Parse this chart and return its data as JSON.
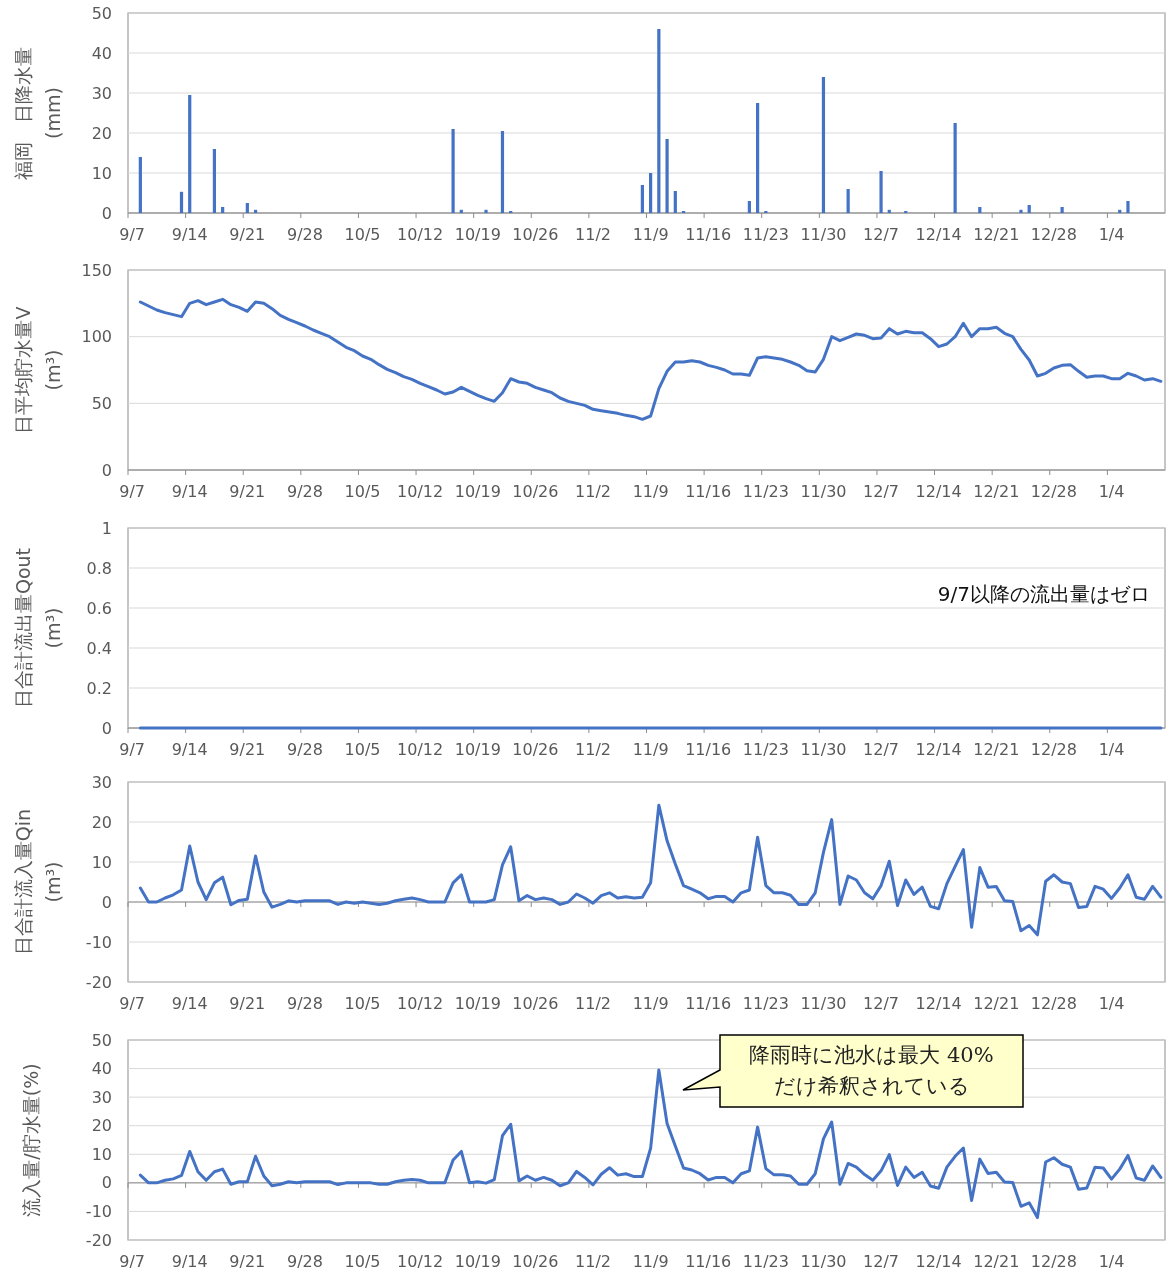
{
  "chart_data": [
    {
      "type": "bar",
      "ylabel": "福岡　日降水量\n(mm)",
      "color": "#4472c4",
      "ylim": [
        0,
        50
      ],
      "yticks": [
        0,
        10,
        20,
        30,
        40,
        50
      ],
      "grid": "y",
      "categories": [
        "9/7",
        null,
        null,
        null,
        null,
        null,
        null,
        "9/14",
        null,
        null,
        null,
        null,
        null,
        null,
        "9/21",
        null,
        null,
        null,
        null,
        null,
        null,
        "9/28",
        null,
        null,
        null,
        null,
        null,
        null,
        "10/5",
        null,
        null,
        null,
        null,
        null,
        null,
        "10/12",
        null,
        null,
        null,
        null,
        null,
        null,
        "10/19",
        null,
        null,
        null,
        null,
        null,
        null,
        "10/26",
        null,
        null,
        null,
        null,
        null,
        null,
        "11/2",
        null,
        null,
        null,
        null,
        null,
        null,
        "11/9",
        null,
        null,
        null,
        null,
        null,
        null,
        "11/16",
        null,
        null,
        null,
        null,
        null,
        null,
        "11/23",
        null,
        null,
        null,
        null,
        null,
        null,
        "11/30",
        null,
        null,
        null,
        null,
        null,
        null,
        "12/7",
        null,
        null,
        null,
        null,
        null,
        null,
        "12/14",
        null,
        null,
        null,
        null,
        null,
        null,
        "12/21",
        null,
        null,
        null,
        null,
        null,
        null,
        "12/28",
        null,
        null,
        null,
        null,
        null,
        null,
        "1/4",
        null,
        null,
        null,
        null,
        null,
        null
      ],
      "values": [
        null,
        14,
        0,
        0,
        0,
        0,
        5.3,
        29.5,
        0,
        0,
        16,
        1.5,
        0,
        0,
        2.5,
        0.8,
        0,
        0,
        0,
        0,
        0,
        0,
        0,
        0,
        0,
        0,
        0,
        0,
        0,
        0,
        0,
        0,
        0,
        0,
        0,
        0,
        0,
        0,
        0,
        21,
        0.8,
        0,
        0,
        0.8,
        0,
        20.5,
        0.5,
        0,
        0,
        0,
        0,
        0,
        0,
        0,
        0,
        0,
        0,
        0,
        0,
        0,
        0,
        0,
        7,
        10,
        46,
        18.5,
        5.5,
        0.5,
        0,
        0,
        0,
        0,
        0,
        0,
        0,
        3,
        27.5,
        0.5,
        0,
        0,
        0,
        0,
        0,
        0,
        34,
        0,
        0,
        6,
        0,
        0,
        0,
        10.5,
        0.8,
        0,
        0.5,
        0,
        0,
        0,
        0,
        0,
        22.5,
        0,
        0,
        1.5,
        0,
        0,
        0,
        0,
        0.8,
        2,
        0,
        0,
        0,
        1.5,
        0,
        0,
        0,
        0,
        0,
        0,
        0.8,
        3,
        0,
        0,
        0,
        0
      ]
    },
    {
      "type": "line",
      "ylabel": "日平均貯水量V\n(m³)",
      "color": "#4472c4",
      "ylim": [
        0,
        150
      ],
      "yticks": [
        0,
        50,
        100,
        150
      ],
      "grid": "y",
      "marker": "none",
      "categories": [
        "9/7",
        null,
        null,
        null,
        null,
        null,
        null,
        "9/14",
        null,
        null,
        null,
        null,
        null,
        null,
        "9/21",
        null,
        null,
        null,
        null,
        null,
        null,
        "9/28",
        null,
        null,
        null,
        null,
        null,
        null,
        "10/5",
        null,
        null,
        null,
        null,
        null,
        null,
        "10/12",
        null,
        null,
        null,
        null,
        null,
        null,
        "10/19",
        null,
        null,
        null,
        null,
        null,
        null,
        "10/26",
        null,
        null,
        null,
        null,
        null,
        null,
        "11/2",
        null,
        null,
        null,
        null,
        null,
        null,
        "11/9",
        null,
        null,
        null,
        null,
        null,
        null,
        "11/16",
        null,
        null,
        null,
        null,
        null,
        null,
        "11/23",
        null,
        null,
        null,
        null,
        null,
        null,
        "11/30",
        null,
        null,
        null,
        null,
        null,
        null,
        "12/7",
        null,
        null,
        null,
        null,
        null,
        null,
        "12/14",
        null,
        null,
        null,
        null,
        null,
        null,
        "12/21",
        null,
        null,
        null,
        null,
        null,
        null,
        "12/28",
        null,
        null,
        null,
        null,
        null,
        null,
        "1/4",
        null,
        null,
        null,
        null,
        null,
        null
      ],
      "values": [
        null,
        126,
        123,
        120,
        118,
        116.5,
        115,
        125,
        127,
        124,
        126,
        128,
        124,
        122,
        119,
        126,
        125,
        121,
        116,
        113,
        110.5,
        108,
        105,
        102.5,
        100,
        96,
        92,
        89.5,
        85.5,
        83,
        79,
        75.5,
        73,
        70,
        68,
        65,
        62.5,
        60,
        57,
        58.5,
        62,
        59,
        56,
        53.5,
        51.5,
        58,
        68.5,
        66,
        65,
        62,
        60,
        58,
        54,
        51.5,
        50,
        48.5,
        45.5,
        44.5,
        43.5,
        42.5,
        41,
        40,
        38,
        40.5,
        61,
        74,
        81,
        81,
        82,
        81,
        78.5,
        77,
        75,
        72,
        72,
        71,
        84,
        85,
        84,
        83,
        81,
        78.5,
        74.5,
        73.5,
        83,
        100,
        97,
        99.5,
        102,
        101,
        98.5,
        99,
        106,
        102,
        104,
        103,
        103,
        98.5,
        92.5,
        94.5,
        100,
        110,
        100,
        106,
        106,
        107,
        102.5,
        100,
        90.5,
        82.5,
        70.5,
        72.5,
        76.5,
        78.5,
        79,
        74,
        69.5,
        70.5,
        70.5,
        68.5,
        68.5,
        72.5,
        70.5,
        67.5,
        68.5,
        66.5
      ]
    },
    {
      "type": "line",
      "ylabel": "日合計流出量Qout\n(m³)",
      "color": "#4472c4",
      "ylim": [
        0,
        1
      ],
      "yticks": [
        0,
        0.2,
        0.4,
        0.6,
        0.8,
        1
      ],
      "grid": "y",
      "marker": "none",
      "annotations": [
        "9/7以降の流出量はゼロ"
      ],
      "categories": [
        "9/7",
        null,
        null,
        null,
        null,
        null,
        null,
        "9/14",
        null,
        null,
        null,
        null,
        null,
        null,
        "9/21",
        null,
        null,
        null,
        null,
        null,
        null,
        "9/28",
        null,
        null,
        null,
        null,
        null,
        null,
        "10/5",
        null,
        null,
        null,
        null,
        null,
        null,
        "10/12",
        null,
        null,
        null,
        null,
        null,
        null,
        "10/19",
        null,
        null,
        null,
        null,
        null,
        null,
        "10/26",
        null,
        null,
        null,
        null,
        null,
        null,
        "11/2",
        null,
        null,
        null,
        null,
        null,
        null,
        "11/9",
        null,
        null,
        null,
        null,
        null,
        null,
        "11/16",
        null,
        null,
        null,
        null,
        null,
        null,
        "11/23",
        null,
        null,
        null,
        null,
        null,
        null,
        "11/30",
        null,
        null,
        null,
        null,
        null,
        null,
        "12/7",
        null,
        null,
        null,
        null,
        null,
        null,
        "12/14",
        null,
        null,
        null,
        null,
        null,
        null,
        "12/21",
        null,
        null,
        null,
        null,
        null,
        null,
        "12/28",
        null,
        null,
        null,
        null,
        null,
        null,
        "1/4",
        null,
        null,
        null,
        null,
        null,
        null
      ],
      "values": [
        null,
        0,
        0,
        0,
        0,
        0,
        0,
        0,
        0,
        0,
        0,
        0,
        0,
        0,
        0,
        0,
        0,
        0,
        0,
        0,
        0,
        0,
        0,
        0,
        0,
        0,
        0,
        0,
        0,
        0,
        0,
        0,
        0,
        0,
        0,
        0,
        0,
        0,
        0,
        0,
        0,
        0,
        0,
        0,
        0,
        0,
        0,
        0,
        0,
        0,
        0,
        0,
        0,
        0,
        0,
        0,
        0,
        0,
        0,
        0,
        0,
        0,
        0,
        0,
        0,
        0,
        0,
        0,
        0,
        0,
        0,
        0,
        0,
        0,
        0,
        0,
        0,
        0,
        0,
        0,
        0,
        0,
        0,
        0,
        0,
        0,
        0,
        0,
        0,
        0,
        0,
        0,
        0,
        0,
        0,
        0,
        0,
        0,
        0,
        0,
        0,
        0,
        0,
        0,
        0,
        0,
        0,
        0,
        0,
        0,
        0,
        0,
        0,
        0,
        0,
        0,
        0,
        0,
        0,
        0,
        0,
        0,
        0,
        0,
        0,
        0
      ]
    },
    {
      "type": "line",
      "ylabel": "日合計流入量Qin\n(m³)",
      "color": "#4472c4",
      "ylim": [
        -20,
        30
      ],
      "yticks": [
        -20,
        -10,
        0,
        10,
        20,
        30
      ],
      "grid": "y",
      "marker": "none",
      "categories": [
        "9/7",
        null,
        null,
        null,
        null,
        null,
        null,
        "9/14",
        null,
        null,
        null,
        null,
        null,
        null,
        "9/21",
        null,
        null,
        null,
        null,
        null,
        null,
        "9/28",
        null,
        null,
        null,
        null,
        null,
        null,
        "10/5",
        null,
        null,
        null,
        null,
        null,
        null,
        "10/12",
        null,
        null,
        null,
        null,
        null,
        null,
        "10/19",
        null,
        null,
        null,
        null,
        null,
        null,
        "10/26",
        null,
        null,
        null,
        null,
        null,
        null,
        "11/2",
        null,
        null,
        null,
        null,
        null,
        null,
        "11/9",
        null,
        null,
        null,
        null,
        null,
        null,
        "11/16",
        null,
        null,
        null,
        null,
        null,
        null,
        "11/23",
        null,
        null,
        null,
        null,
        null,
        null,
        "11/30",
        null,
        null,
        null,
        null,
        null,
        null,
        "12/7",
        null,
        null,
        null,
        null,
        null,
        null,
        "12/14",
        null,
        null,
        null,
        null,
        null,
        null,
        "12/21",
        null,
        null,
        null,
        null,
        null,
        null,
        "12/28",
        null,
        null,
        null,
        null,
        null,
        null,
        "1/4",
        null,
        null,
        null,
        null,
        null,
        null
      ],
      "values": [
        null,
        3.5,
        0,
        0,
        1,
        1.8,
        3,
        14,
        5,
        0.6,
        4.8,
        6.2,
        -0.7,
        0.4,
        0.7,
        11.5,
        2.5,
        -1.3,
        -0.6,
        0.3,
        0,
        0.3,
        0.3,
        0.3,
        0.3,
        -0.6,
        0,
        -0.3,
        0,
        -0.3,
        -0.6,
        -0.3,
        0.3,
        0.7,
        1,
        0.6,
        0,
        0,
        0,
        4.8,
        6.8,
        0,
        0,
        0,
        0.6,
        9.3,
        13.8,
        0.3,
        1.6,
        0.6,
        1,
        0.6,
        -0.6,
        0,
        2,
        1,
        -0.3,
        1.6,
        2.3,
        1,
        1.3,
        1,
        1.2,
        4.8,
        24.2,
        15.3,
        9.5,
        4.1,
        3.2,
        2.3,
        0.8,
        1.4,
        1.4,
        0,
        2.3,
        3,
        16.2,
        4.1,
        2.3,
        2.3,
        1.7,
        -0.6,
        -0.6,
        2.3,
        12.4,
        20.6,
        -0.6,
        6.5,
        5.5,
        2.3,
        0.8,
        4.1,
        10.2,
        -0.9,
        5.5,
        1.9,
        3.7,
        -1.1,
        -1.7,
        4.6,
        8.9,
        13.1,
        -6.3,
        8.6,
        3.7,
        3.9,
        0.3,
        0.1,
        -7.2,
        -5.9,
        -8.2,
        5.2,
        6.8,
        5,
        4.6,
        -1.4,
        -1.1,
        3.9,
        3.2,
        0.9,
        3.5,
        6.8,
        1.2,
        0.7,
        3.9,
        1.2
      ]
    },
    {
      "type": "line",
      "ylabel": "流入量/貯水量(%)",
      "color": "#4472c4",
      "ylim": [
        -20,
        50
      ],
      "yticks": [
        -20,
        -10,
        0,
        10,
        20,
        30,
        40,
        50
      ],
      "grid": "y",
      "marker": "none",
      "annotations": [
        "降雨時に池水は最大 40%\nだけ希釈されている"
      ],
      "categories": [
        "9/7",
        null,
        null,
        null,
        null,
        null,
        null,
        "9/14",
        null,
        null,
        null,
        null,
        null,
        null,
        "9/21",
        null,
        null,
        null,
        null,
        null,
        null,
        "9/28",
        null,
        null,
        null,
        null,
        null,
        null,
        "10/5",
        null,
        null,
        null,
        null,
        null,
        null,
        "10/12",
        null,
        null,
        null,
        null,
        null,
        null,
        "10/19",
        null,
        null,
        null,
        null,
        null,
        null,
        "10/26",
        null,
        null,
        null,
        null,
        null,
        null,
        "11/2",
        null,
        null,
        null,
        null,
        null,
        null,
        "11/9",
        null,
        null,
        null,
        null,
        null,
        null,
        "11/16",
        null,
        null,
        null,
        null,
        null,
        null,
        "11/23",
        null,
        null,
        null,
        null,
        null,
        null,
        "11/30",
        null,
        null,
        null,
        null,
        null,
        null,
        "12/7",
        null,
        null,
        null,
        null,
        null,
        null,
        "12/14",
        null,
        null,
        null,
        null,
        null,
        null,
        "12/21",
        null,
        null,
        null,
        null,
        null,
        null,
        "12/28",
        null,
        null,
        null,
        null,
        null,
        null,
        "1/4",
        null,
        null,
        null,
        null,
        null,
        null
      ],
      "values": [
        null,
        2.7,
        0,
        0,
        0.9,
        1.4,
        2.6,
        11,
        3.9,
        0.9,
        3.9,
        4.8,
        -0.5,
        0.4,
        0.4,
        9.3,
        2.4,
        -1,
        -0.5,
        0.4,
        0,
        0.4,
        0.4,
        0.4,
        0.4,
        -0.6,
        0,
        0,
        0,
        0,
        -0.5,
        -0.5,
        0.4,
        0.9,
        1.2,
        0.9,
        0,
        0,
        0,
        8,
        11,
        0,
        0.4,
        -0.1,
        1.1,
        16.5,
        20.5,
        0.7,
        2.4,
        0.9,
        1.9,
        0.9,
        -1,
        0,
        4,
        1.9,
        -0.7,
        3,
        5.3,
        2.7,
        3.2,
        2.2,
        2.2,
        12.1,
        39.5,
        20.8,
        12.9,
        5.2,
        4.5,
        3.2,
        1,
        1.9,
        1.9,
        0,
        3.2,
        4.2,
        19.5,
        5,
        2.8,
        2.8,
        2.4,
        -0.5,
        -0.5,
        3.2,
        15.4,
        21.3,
        -0.5,
        6.8,
        5.5,
        2.9,
        0.9,
        4.2,
        9.9,
        -0.9,
        5.5,
        1.9,
        3.7,
        -1.1,
        -1.9,
        5.5,
        9.3,
        12.2,
        -6.2,
        8.3,
        3.3,
        3.7,
        0.3,
        0.1,
        -8.2,
        -7,
        -12.1,
        7.3,
        8.8,
        6.5,
        5.5,
        -2.2,
        -1.8,
        5.5,
        5.2,
        1.3,
        4.8,
        9.6,
        1.7,
        0.9,
        5.9,
        1.9
      ]
    }
  ]
}
